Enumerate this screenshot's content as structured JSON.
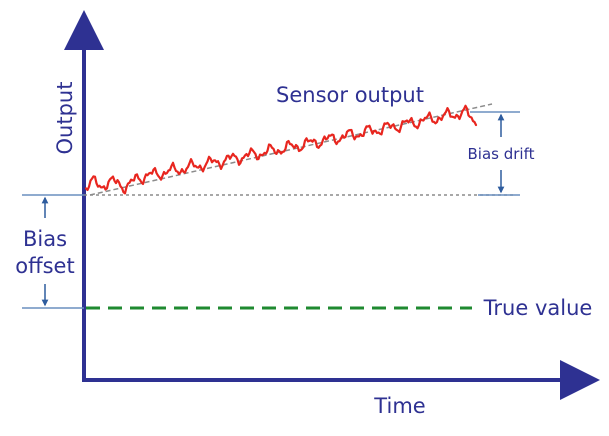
{
  "labels": {
    "y_axis": "Output",
    "x_axis": "Time",
    "sensor_output": "Sensor output",
    "bias_drift": "Bias drift",
    "bias_line1": "Bias",
    "bias_line2": "offset",
    "true_value": "True value"
  },
  "colors": {
    "axis": "#2e3192",
    "signal": "#e8261f",
    "true_value": "#1f8a30",
    "trend": "#8c8c8c",
    "guide": "#6a8fbf",
    "arrow": "#2e5c9e"
  }
}
